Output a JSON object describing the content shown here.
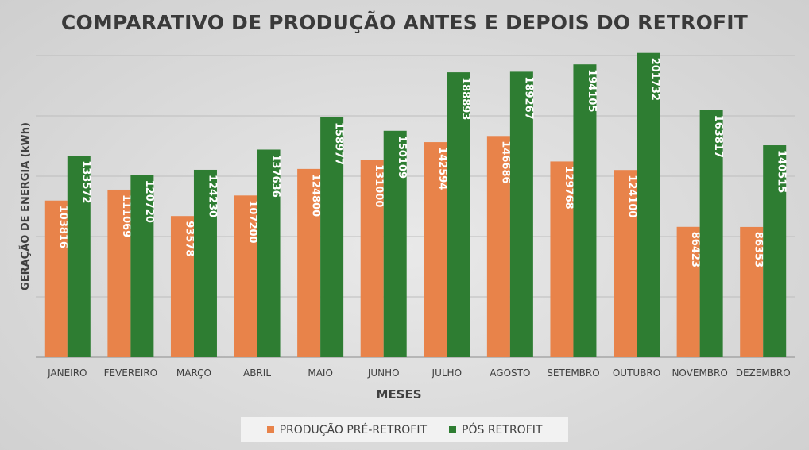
{
  "chart_data": {
    "type": "bar",
    "title": "COMPARATIVO DE PRODUÇÃO ANTES E DEPOIS DO RETROFIT",
    "xlabel": "MESES",
    "ylabel": "GERAÇÃO DE ENERGIA (kWh)",
    "categories": [
      "JANEIRO",
      "FEVEREIRO",
      "MARÇO",
      "ABRIL",
      "MAIO",
      "JUNHO",
      "JULHO",
      "AGOSTO",
      "SETEMBRO",
      "OUTUBRO",
      "NOVEMBRO",
      "DEZEMBRO"
    ],
    "series": [
      {
        "name": "PRODUÇÃO PRÉ-RETROFIT",
        "color": "#E8834A",
        "values": [
          103816,
          111069,
          93578,
          107200,
          124800,
          131000,
          142594,
          146686,
          129768,
          124100,
          86423,
          86353
        ]
      },
      {
        "name": "PÓS RETROFIT",
        "color": "#2E7D32",
        "values": [
          133572,
          120720,
          124230,
          137636,
          158977,
          150109,
          188893,
          189267,
          194105,
          201732,
          163817,
          140515
        ]
      }
    ],
    "ylim": [
      0,
      200000
    ],
    "grid": true,
    "legend_position": "bottom",
    "data_labels": true
  }
}
